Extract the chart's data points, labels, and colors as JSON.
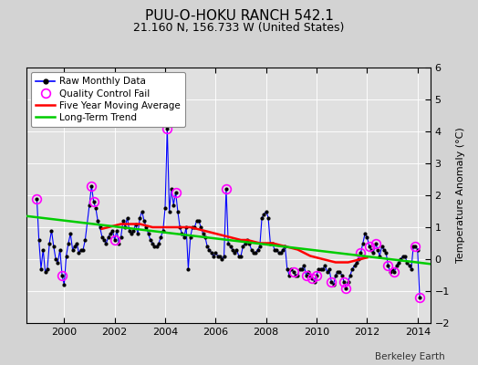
{
  "title": "PUU-O-HOKU RANCH 542.1",
  "subtitle": "21.160 N, 156.733 W (United States)",
  "ylabel": "Temperature Anomaly (°C)",
  "attribution": "Berkeley Earth",
  "xlim": [
    1998.5,
    2014.5
  ],
  "ylim": [
    -2,
    6
  ],
  "yticks": [
    -2,
    -1,
    0,
    1,
    2,
    3,
    4,
    5,
    6
  ],
  "xticks": [
    2000,
    2002,
    2004,
    2006,
    2008,
    2010,
    2012,
    2014
  ],
  "background_color": "#d3d3d3",
  "plot_bg_color": "#e0e0e0",
  "raw_line_color": "#0000ff",
  "raw_dot_color": "#000000",
  "qc_fail_color": "#ff00ff",
  "moving_avg_color": "#ff0000",
  "trend_color": "#00cc00",
  "raw_data": [
    [
      1998.917,
      1.9
    ],
    [
      1999.0,
      0.6
    ],
    [
      1999.083,
      -0.3
    ],
    [
      1999.167,
      0.3
    ],
    [
      1999.25,
      -0.4
    ],
    [
      1999.333,
      -0.3
    ],
    [
      1999.417,
      0.5
    ],
    [
      1999.5,
      0.9
    ],
    [
      1999.583,
      0.4
    ],
    [
      1999.667,
      0.0
    ],
    [
      1999.75,
      -0.1
    ],
    [
      1999.833,
      0.3
    ],
    [
      1999.917,
      -0.5
    ],
    [
      2000.0,
      -0.8
    ],
    [
      2000.083,
      0.1
    ],
    [
      2000.167,
      0.5
    ],
    [
      2000.25,
      0.8
    ],
    [
      2000.333,
      0.3
    ],
    [
      2000.417,
      0.4
    ],
    [
      2000.5,
      0.5
    ],
    [
      2000.583,
      0.2
    ],
    [
      2000.667,
      0.3
    ],
    [
      2000.75,
      0.3
    ],
    [
      2000.833,
      0.6
    ],
    [
      2001.0,
      1.7
    ],
    [
      2001.083,
      2.3
    ],
    [
      2001.167,
      1.8
    ],
    [
      2001.25,
      1.6
    ],
    [
      2001.333,
      1.2
    ],
    [
      2001.417,
      1.0
    ],
    [
      2001.5,
      0.7
    ],
    [
      2001.583,
      0.6
    ],
    [
      2001.667,
      0.5
    ],
    [
      2001.75,
      0.7
    ],
    [
      2001.833,
      0.8
    ],
    [
      2001.917,
      0.9
    ],
    [
      2002.0,
      0.6
    ],
    [
      2002.083,
      0.9
    ],
    [
      2002.167,
      0.5
    ],
    [
      2002.25,
      0.7
    ],
    [
      2002.333,
      1.2
    ],
    [
      2002.417,
      1.0
    ],
    [
      2002.5,
      1.3
    ],
    [
      2002.583,
      0.9
    ],
    [
      2002.667,
      0.8
    ],
    [
      2002.75,
      0.9
    ],
    [
      2002.833,
      1.1
    ],
    [
      2002.917,
      0.8
    ],
    [
      2003.0,
      1.3
    ],
    [
      2003.083,
      1.5
    ],
    [
      2003.167,
      1.2
    ],
    [
      2003.25,
      1.0
    ],
    [
      2003.333,
      0.8
    ],
    [
      2003.417,
      0.6
    ],
    [
      2003.5,
      0.5
    ],
    [
      2003.583,
      0.4
    ],
    [
      2003.667,
      0.4
    ],
    [
      2003.75,
      0.5
    ],
    [
      2003.833,
      0.7
    ],
    [
      2003.917,
      0.9
    ],
    [
      2004.0,
      1.6
    ],
    [
      2004.083,
      4.1
    ],
    [
      2004.167,
      1.5
    ],
    [
      2004.25,
      2.2
    ],
    [
      2004.333,
      1.7
    ],
    [
      2004.417,
      2.1
    ],
    [
      2004.5,
      1.5
    ],
    [
      2004.583,
      1.0
    ],
    [
      2004.667,
      0.8
    ],
    [
      2004.75,
      0.7
    ],
    [
      2004.833,
      1.0
    ],
    [
      2004.917,
      -0.3
    ],
    [
      2005.0,
      0.7
    ],
    [
      2005.083,
      1.0
    ],
    [
      2005.167,
      1.0
    ],
    [
      2005.25,
      1.2
    ],
    [
      2005.333,
      1.2
    ],
    [
      2005.417,
      1.0
    ],
    [
      2005.5,
      0.8
    ],
    [
      2005.583,
      0.7
    ],
    [
      2005.667,
      0.4
    ],
    [
      2005.75,
      0.3
    ],
    [
      2005.833,
      0.2
    ],
    [
      2005.917,
      0.1
    ],
    [
      2006.0,
      0.2
    ],
    [
      2006.083,
      0.1
    ],
    [
      2006.167,
      0.1
    ],
    [
      2006.25,
      0.0
    ],
    [
      2006.333,
      0.1
    ],
    [
      2006.417,
      2.2
    ],
    [
      2006.5,
      0.5
    ],
    [
      2006.583,
      0.4
    ],
    [
      2006.667,
      0.3
    ],
    [
      2006.75,
      0.2
    ],
    [
      2006.833,
      0.3
    ],
    [
      2006.917,
      0.1
    ],
    [
      2007.0,
      0.1
    ],
    [
      2007.083,
      0.4
    ],
    [
      2007.167,
      0.5
    ],
    [
      2007.25,
      0.6
    ],
    [
      2007.333,
      0.5
    ],
    [
      2007.417,
      0.3
    ],
    [
      2007.5,
      0.2
    ],
    [
      2007.583,
      0.2
    ],
    [
      2007.667,
      0.3
    ],
    [
      2007.75,
      0.4
    ],
    [
      2007.833,
      1.3
    ],
    [
      2007.917,
      1.4
    ],
    [
      2008.0,
      1.5
    ],
    [
      2008.083,
      1.3
    ],
    [
      2008.167,
      0.5
    ],
    [
      2008.25,
      0.5
    ],
    [
      2008.333,
      0.3
    ],
    [
      2008.417,
      0.3
    ],
    [
      2008.5,
      0.2
    ],
    [
      2008.583,
      0.2
    ],
    [
      2008.667,
      0.3
    ],
    [
      2008.75,
      0.4
    ],
    [
      2008.833,
      -0.3
    ],
    [
      2008.917,
      -0.5
    ],
    [
      2009.0,
      -0.3
    ],
    [
      2009.083,
      -0.4
    ],
    [
      2009.167,
      -0.5
    ],
    [
      2009.25,
      -0.5
    ],
    [
      2009.333,
      -0.3
    ],
    [
      2009.417,
      -0.3
    ],
    [
      2009.5,
      -0.2
    ],
    [
      2009.583,
      -0.5
    ],
    [
      2009.667,
      -0.4
    ],
    [
      2009.75,
      -0.5
    ],
    [
      2009.833,
      -0.6
    ],
    [
      2009.917,
      -0.7
    ],
    [
      2010.0,
      -0.5
    ],
    [
      2010.083,
      -0.3
    ],
    [
      2010.167,
      -0.3
    ],
    [
      2010.25,
      -0.3
    ],
    [
      2010.333,
      -0.2
    ],
    [
      2010.417,
      -0.4
    ],
    [
      2010.5,
      -0.3
    ],
    [
      2010.583,
      -0.7
    ],
    [
      2010.667,
      -0.8
    ],
    [
      2010.75,
      -0.5
    ],
    [
      2010.833,
      -0.4
    ],
    [
      2010.917,
      -0.4
    ],
    [
      2011.0,
      -0.5
    ],
    [
      2011.083,
      -0.7
    ],
    [
      2011.167,
      -0.9
    ],
    [
      2011.25,
      -0.7
    ],
    [
      2011.333,
      -0.5
    ],
    [
      2011.417,
      -0.3
    ],
    [
      2011.5,
      -0.2
    ],
    [
      2011.583,
      -0.1
    ],
    [
      2011.667,
      0.0
    ],
    [
      2011.75,
      0.2
    ],
    [
      2011.833,
      0.5
    ],
    [
      2011.917,
      0.8
    ],
    [
      2012.0,
      0.7
    ],
    [
      2012.083,
      0.4
    ],
    [
      2012.167,
      0.3
    ],
    [
      2012.25,
      0.2
    ],
    [
      2012.333,
      0.5
    ],
    [
      2012.417,
      0.3
    ],
    [
      2012.5,
      0.1
    ],
    [
      2012.583,
      0.4
    ],
    [
      2012.667,
      0.3
    ],
    [
      2012.75,
      0.2
    ],
    [
      2012.833,
      -0.2
    ],
    [
      2012.917,
      -0.4
    ],
    [
      2013.0,
      -0.3
    ],
    [
      2013.083,
      -0.4
    ],
    [
      2013.167,
      -0.2
    ],
    [
      2013.25,
      -0.1
    ],
    [
      2013.333,
      0.0
    ],
    [
      2013.417,
      0.1
    ],
    [
      2013.5,
      0.1
    ],
    [
      2013.583,
      -0.1
    ],
    [
      2013.667,
      -0.2
    ],
    [
      2013.75,
      -0.3
    ],
    [
      2013.833,
      0.4
    ],
    [
      2013.917,
      0.4
    ],
    [
      2014.0,
      0.3
    ],
    [
      2014.083,
      -1.2
    ]
  ],
  "qc_fail_points": [
    [
      1998.917,
      1.9
    ],
    [
      1999.917,
      -0.5
    ],
    [
      2001.083,
      2.3
    ],
    [
      2001.167,
      1.8
    ],
    [
      2002.0,
      0.6
    ],
    [
      2004.083,
      4.1
    ],
    [
      2004.417,
      2.1
    ],
    [
      2006.417,
      2.2
    ],
    [
      2009.083,
      -0.4
    ],
    [
      2009.583,
      -0.5
    ],
    [
      2009.833,
      -0.6
    ],
    [
      2010.0,
      -0.5
    ],
    [
      2010.583,
      -0.7
    ],
    [
      2011.083,
      -0.7
    ],
    [
      2011.167,
      -0.9
    ],
    [
      2011.75,
      0.2
    ],
    [
      2012.083,
      0.4
    ],
    [
      2012.333,
      0.5
    ],
    [
      2012.833,
      -0.2
    ],
    [
      2013.083,
      -0.4
    ],
    [
      2013.917,
      0.4
    ],
    [
      2014.083,
      -1.2
    ]
  ],
  "moving_avg": [
    [
      2001.5,
      0.95
    ],
    [
      2001.75,
      1.0
    ],
    [
      2002.0,
      1.05
    ],
    [
      2002.25,
      1.1
    ],
    [
      2002.5,
      1.1
    ],
    [
      2002.75,
      1.1
    ],
    [
      2003.0,
      1.1
    ],
    [
      2003.25,
      1.05
    ],
    [
      2003.5,
      1.0
    ],
    [
      2003.75,
      1.0
    ],
    [
      2004.0,
      1.0
    ],
    [
      2004.25,
      1.0
    ],
    [
      2004.5,
      1.0
    ],
    [
      2004.75,
      1.0
    ],
    [
      2005.0,
      1.0
    ],
    [
      2005.25,
      0.95
    ],
    [
      2005.5,
      0.9
    ],
    [
      2005.75,
      0.85
    ],
    [
      2006.0,
      0.8
    ],
    [
      2006.25,
      0.75
    ],
    [
      2006.5,
      0.7
    ],
    [
      2006.75,
      0.65
    ],
    [
      2007.0,
      0.6
    ],
    [
      2007.25,
      0.6
    ],
    [
      2007.5,
      0.55
    ],
    [
      2007.75,
      0.5
    ],
    [
      2008.0,
      0.5
    ],
    [
      2008.25,
      0.5
    ],
    [
      2008.5,
      0.45
    ],
    [
      2008.75,
      0.4
    ],
    [
      2009.0,
      0.35
    ],
    [
      2009.25,
      0.3
    ],
    [
      2009.5,
      0.2
    ],
    [
      2009.75,
      0.1
    ],
    [
      2010.0,
      0.05
    ],
    [
      2010.25,
      0.0
    ],
    [
      2010.5,
      -0.05
    ],
    [
      2010.75,
      -0.1
    ],
    [
      2011.0,
      -0.1
    ],
    [
      2011.25,
      -0.1
    ],
    [
      2011.5,
      -0.05
    ],
    [
      2011.75,
      0.0
    ],
    [
      2012.0,
      0.05
    ]
  ],
  "trend_line": [
    [
      1998.5,
      1.35
    ],
    [
      2014.5,
      -0.15
    ]
  ],
  "legend_labels": [
    "Raw Monthly Data",
    "Quality Control Fail",
    "Five Year Moving Average",
    "Long-Term Trend"
  ]
}
